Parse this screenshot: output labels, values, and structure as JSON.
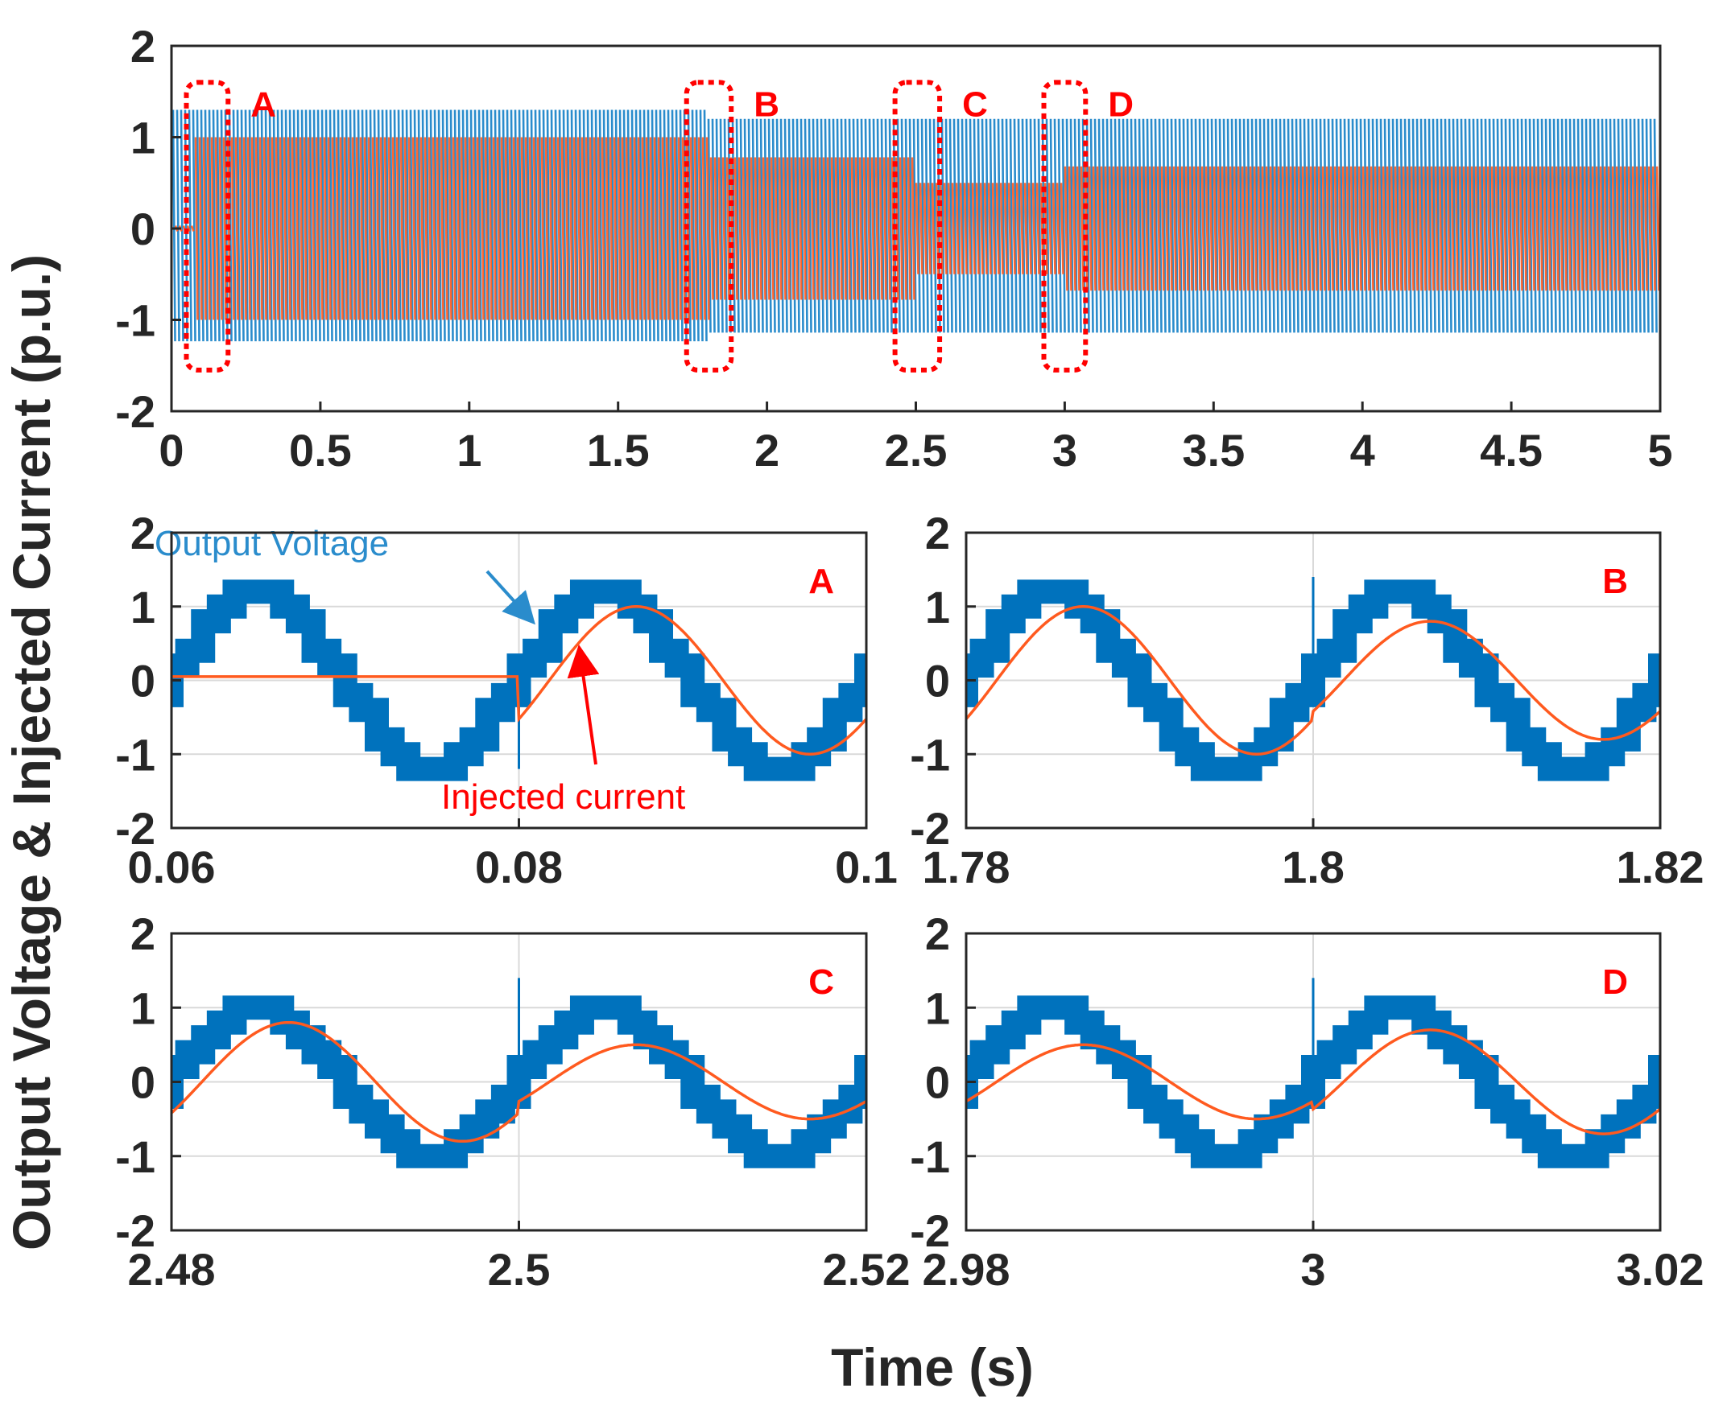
{
  "figure": {
    "ylabel": "Output Voltage & Injected Current (p.u.)",
    "xlabel": "Time (s)"
  },
  "colors": {
    "voltage": "#0072bd",
    "voltage_light": "#2a8ccc",
    "current": "#ff5a1f",
    "marker": "#ff0000",
    "grid": "#d9d9d9",
    "axis": "#262626"
  },
  "chart_data": [
    {
      "id": "overview",
      "type": "line",
      "xlim": [
        0,
        5
      ],
      "ylim": [
        -2,
        2
      ],
      "xticks": [
        "0",
        "0.5",
        "1",
        "1.5",
        "2",
        "2.5",
        "3",
        "3.5",
        "4",
        "4.5",
        "5"
      ],
      "xtick_values": [
        0,
        0.5,
        1,
        1.5,
        2,
        2.5,
        3,
        3.5,
        4,
        4.5,
        5
      ],
      "yticks": [
        "2",
        "1",
        "0",
        "-1",
        "-2"
      ],
      "ytick_values": [
        2,
        1,
        0,
        -1,
        -2
      ],
      "grid": false,
      "series": [
        {
          "name": "Output voltage",
          "envelope": [
            [
              0,
              1.0,
              1.3
            ],
            [
              1.8,
              1.0,
              1.3
            ],
            [
              2.5,
              1.0,
              1.2
            ],
            [
              3.0,
              1.0,
              1.2
            ],
            [
              5,
              1.0,
              1.2
            ]
          ]
        },
        {
          "name": "Injected current",
          "envelope": [
            [
              0.08,
              1.0
            ],
            [
              1.8,
              1.0
            ],
            [
              1.8,
              0.8
            ],
            [
              2.5,
              0.8
            ],
            [
              2.5,
              0.5
            ],
            [
              3.0,
              0.5
            ],
            [
              3.0,
              0.7
            ],
            [
              5,
              0.7
            ]
          ]
        }
      ],
      "regions": [
        {
          "label": "A",
          "x0": 0.05,
          "x1": 0.19,
          "y0": -1.55,
          "y1": 1.6
        },
        {
          "label": "B",
          "x0": 1.73,
          "x1": 1.88,
          "y0": -1.55,
          "y1": 1.6
        },
        {
          "label": "C",
          "x0": 2.43,
          "x1": 2.58,
          "y0": -1.55,
          "y1": 1.6
        },
        {
          "label": "D",
          "x0": 2.93,
          "x1": 3.07,
          "y0": -1.55,
          "y1": 1.6
        }
      ]
    },
    {
      "id": "zoom-A",
      "type": "line",
      "label": "A",
      "xlim": [
        0.06,
        0.1
      ],
      "ylim": [
        -2,
        2
      ],
      "xticks": [
        "0.06",
        "0.08",
        "0.1"
      ],
      "xtick_values": [
        0.06,
        0.08,
        0.1
      ],
      "yticks": [
        "2",
        "1",
        "0",
        "-1",
        "-2"
      ],
      "ytick_values": [
        2,
        1,
        0,
        -1,
        -2
      ],
      "grid": true,
      "step_time": 0.08,
      "series": [
        {
          "name": "Output Voltage",
          "amplitude": 1.15
        },
        {
          "name": "Injected current",
          "amp_before": 0.0,
          "amp_after": 1.0,
          "offset_before": 0.05
        }
      ],
      "annotations": [
        {
          "text": "Output Voltage",
          "color": "voltage_light",
          "arrow_to": [
            0.0807,
            0.82
          ]
        },
        {
          "text": "Injected current",
          "color": "marker",
          "arrow_to": [
            0.0835,
            0.4
          ]
        }
      ]
    },
    {
      "id": "zoom-B",
      "type": "line",
      "label": "B",
      "xlim": [
        1.78,
        1.82
      ],
      "ylim": [
        -2,
        2
      ],
      "xticks": [
        "1.78",
        "1.8",
        "1.82"
      ],
      "xtick_values": [
        1.78,
        1.8,
        1.82
      ],
      "yticks": [
        "2",
        "1",
        "0",
        "-1",
        "-2"
      ],
      "ytick_values": [
        2,
        1,
        0,
        -1,
        -2
      ],
      "grid": true,
      "step_time": 1.8,
      "series": [
        {
          "name": "Output Voltage",
          "amplitude": 1.15
        },
        {
          "name": "Injected current",
          "amp_before": 1.0,
          "amp_after": 0.8
        }
      ]
    },
    {
      "id": "zoom-C",
      "type": "line",
      "label": "C",
      "xlim": [
        2.48,
        2.52
      ],
      "ylim": [
        -2,
        2
      ],
      "xticks": [
        "2.48",
        "2.5",
        "2.52"
      ],
      "xtick_values": [
        2.48,
        2.5,
        2.52
      ],
      "yticks": [
        "2",
        "1",
        "0",
        "-1",
        "-2"
      ],
      "ytick_values": [
        2,
        1,
        0,
        -1,
        -2
      ],
      "grid": true,
      "step_time": 2.5,
      "series": [
        {
          "name": "Output Voltage",
          "amplitude": 1.05
        },
        {
          "name": "Injected current",
          "amp_before": 0.8,
          "amp_after": 0.5
        }
      ]
    },
    {
      "id": "zoom-D",
      "type": "line",
      "label": "D",
      "xlim": [
        2.98,
        3.02
      ],
      "ylim": [
        -2,
        2
      ],
      "xticks": [
        "2.98",
        "3",
        "3.02"
      ],
      "xtick_values": [
        2.98,
        3,
        3.02
      ],
      "yticks": [
        "2",
        "1",
        "0",
        "-1",
        "-2"
      ],
      "ytick_values": [
        2,
        1,
        0,
        -1,
        -2
      ],
      "grid": true,
      "step_time": 3.0,
      "series": [
        {
          "name": "Output Voltage",
          "amplitude": 1.05
        },
        {
          "name": "Injected current",
          "amp_before": 0.5,
          "amp_after": 0.7
        }
      ]
    }
  ]
}
